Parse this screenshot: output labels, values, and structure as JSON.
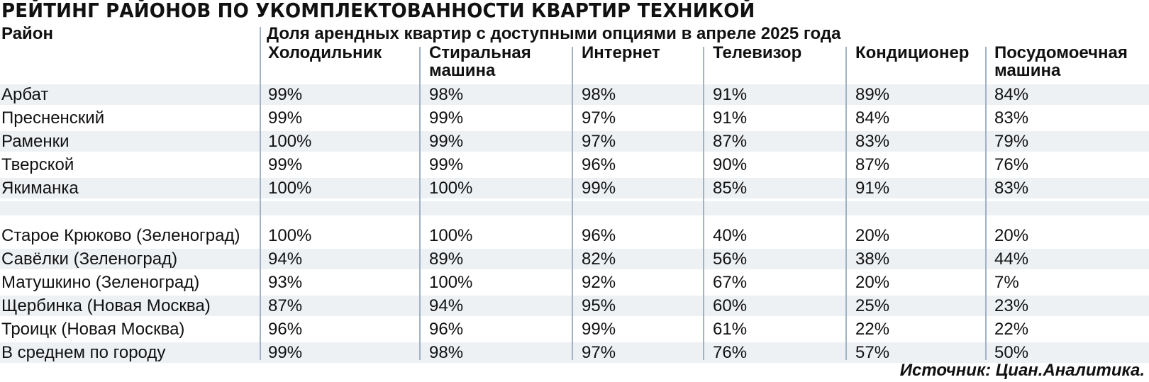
{
  "title": "РЕЙТИНГ РАЙОНОВ ПО УКОМПЛЕКТОВАННОСТИ КВАРТИР ТЕХНИКОЙ",
  "district_header": "Район",
  "group_header": "Доля арендных квартир с доступными опциями в апреле 2025 года",
  "columns": [
    "Холодильник",
    "Стиральная машина",
    "Интернет",
    "Телевизор",
    "Кондиционер",
    "Посудомоечная машина"
  ],
  "source": "Источник: Циан.Аналитика.",
  "chart_data": {
    "type": "table",
    "title": "РЕЙТИНГ РАЙОНОВ ПО УКОМПЛЕКТОВАННОСТИ КВАРТИР ТЕХНИКОЙ",
    "header": [
      "Холодильник",
      "Стиральная машина",
      "Интернет",
      "Телевизор",
      "Кондиционер",
      "Посудомоечная машина"
    ],
    "rows": [
      {
        "name": "Арбат",
        "values": [
          "99%",
          "98%",
          "98%",
          "91%",
          "89%",
          "84%"
        ]
      },
      {
        "name": "Пресненский",
        "values": [
          "99%",
          "99%",
          "97%",
          "91%",
          "84%",
          "83%"
        ]
      },
      {
        "name": "Раменки",
        "values": [
          "100%",
          "99%",
          "97%",
          "87%",
          "83%",
          "79%"
        ]
      },
      {
        "name": "Тверской",
        "values": [
          "99%",
          "99%",
          "96%",
          "90%",
          "87%",
          "76%"
        ]
      },
      {
        "name": "Якиманка",
        "values": [
          "100%",
          "100%",
          "99%",
          "85%",
          "91%",
          "83%"
        ]
      },
      {
        "name": "Старое Крюково (Зеленоград)",
        "values": [
          "100%",
          "100%",
          "96%",
          "40%",
          "20%",
          "20%"
        ]
      },
      {
        "name": "Савёлки (Зеленоград)",
        "values": [
          "94%",
          "89%",
          "82%",
          "56%",
          "38%",
          "44%"
        ]
      },
      {
        "name": "Матушкино (Зеленоград)",
        "values": [
          "93%",
          "100%",
          "92%",
          "67%",
          "20%",
          "7%"
        ]
      },
      {
        "name": "Щербинка (Новая Москва)",
        "values": [
          "87%",
          "94%",
          "95%",
          "60%",
          "25%",
          "23%"
        ]
      },
      {
        "name": "Троицк (Новая Москва)",
        "values": [
          "96%",
          "96%",
          "99%",
          "61%",
          "22%",
          "22%"
        ]
      },
      {
        "name": "В среднем по городу",
        "values": [
          "99%",
          "98%",
          "97%",
          "76%",
          "57%",
          "50%"
        ]
      }
    ]
  }
}
